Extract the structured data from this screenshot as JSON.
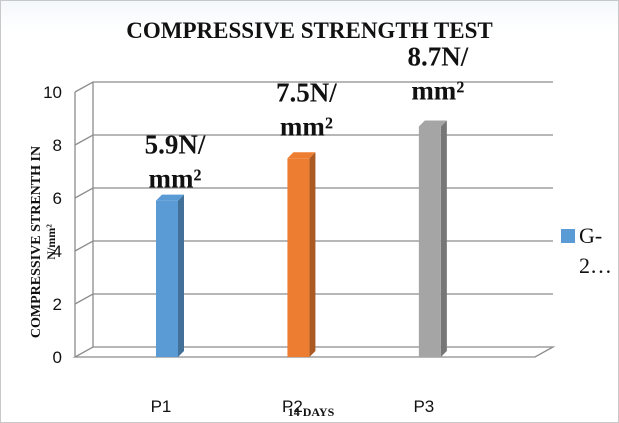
{
  "chart_data": {
    "type": "bar",
    "title": "COMPRESSIVE STRENGTH  TEST",
    "ylabel_line1": "COMPRESSIVE STRENTH IN",
    "ylabel_line2": "N/mm²",
    "xlabel": "14 DAYS",
    "categories": [
      "P1",
      "P2",
      "P3"
    ],
    "series": [
      {
        "name": "G-2…",
        "values": [
          5.9,
          7.5,
          8.7
        ]
      }
    ],
    "data_labels": [
      [
        "5.9N/",
        "mm²"
      ],
      [
        "7.5N/",
        "mm²"
      ],
      [
        "8.7N/",
        "mm²"
      ]
    ],
    "bar_colors": [
      "#5b9bd5",
      "#ed7d31",
      "#a5a5a5"
    ],
    "ylim": [
      0,
      10
    ],
    "yticks": [
      0,
      2,
      4,
      6,
      8,
      10
    ],
    "grid": true,
    "legend_position": "right",
    "legend_lines": [
      "G-",
      "2…"
    ]
  }
}
